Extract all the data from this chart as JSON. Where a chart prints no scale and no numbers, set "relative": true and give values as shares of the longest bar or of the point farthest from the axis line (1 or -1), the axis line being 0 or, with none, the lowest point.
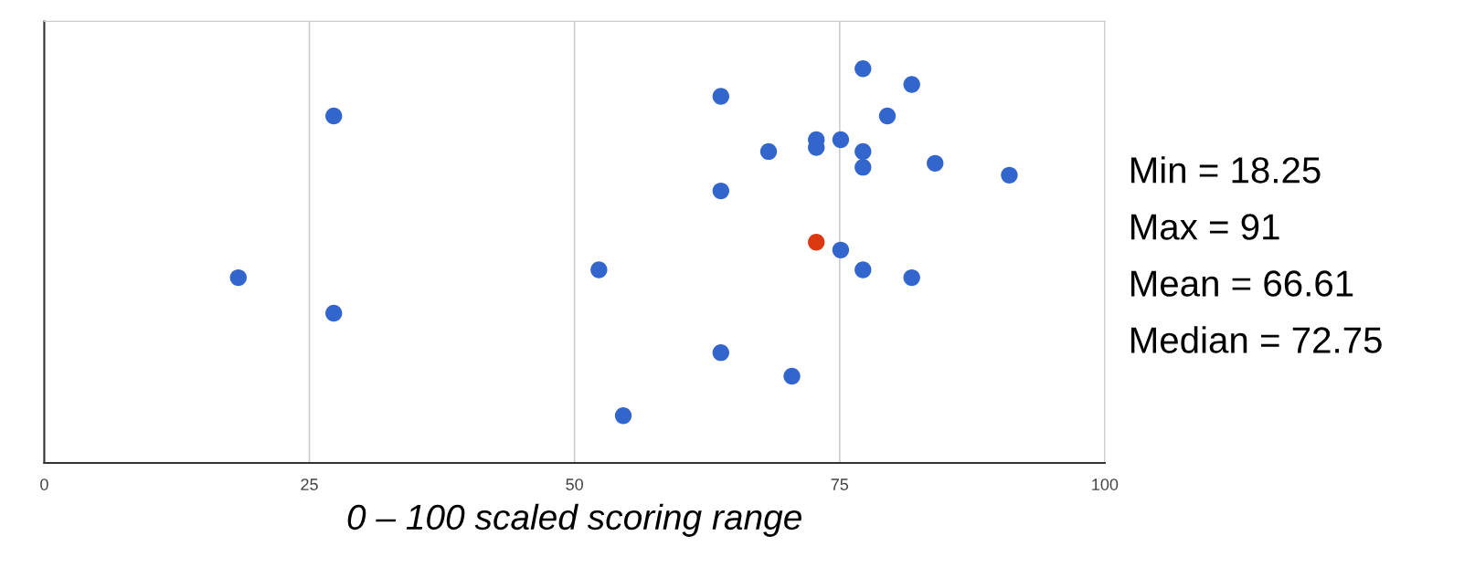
{
  "chart_data": {
    "type": "scatter",
    "xlabel": "0 – 100 scaled scoring range",
    "relative": true,
    "series": [
      {
        "color": "#3366cc",
        "x": [
          77.2,
          81.8,
          63.8,
          27.3,
          79.5,
          72.8,
          72.8,
          75.1,
          77.2,
          77.2,
          68.3,
          84.0,
          91.0,
          63.8,
          75.1,
          77.2,
          81.8,
          52.3,
          18.3,
          27.3,
          63.8,
          70.5,
          54.6
        ],
        "values": [
          1,
          0.96,
          0.93,
          0.88,
          0.88,
          0.82,
          0.8,
          0.82,
          0.79,
          0.75,
          0.79,
          0.76,
          0.73,
          0.69,
          0.54,
          0.49,
          0.47,
          0.49,
          0.47,
          0.38,
          0.28,
          0.22,
          0.12
        ]
      },
      {
        "color": "#dc3912",
        "x": [
          72.8
        ],
        "values": [
          0.56
        ]
      }
    ],
    "xlim": [
      0,
      100
    ],
    "xticks": [
      0,
      25,
      50,
      75,
      100
    ],
    "tick_labels": "x",
    "grid": "x",
    "marker": "circle",
    "annotations": [
      "Min = 18.25",
      "Max = 91",
      "Mean = 66.61",
      "Median = 72.75"
    ]
  }
}
